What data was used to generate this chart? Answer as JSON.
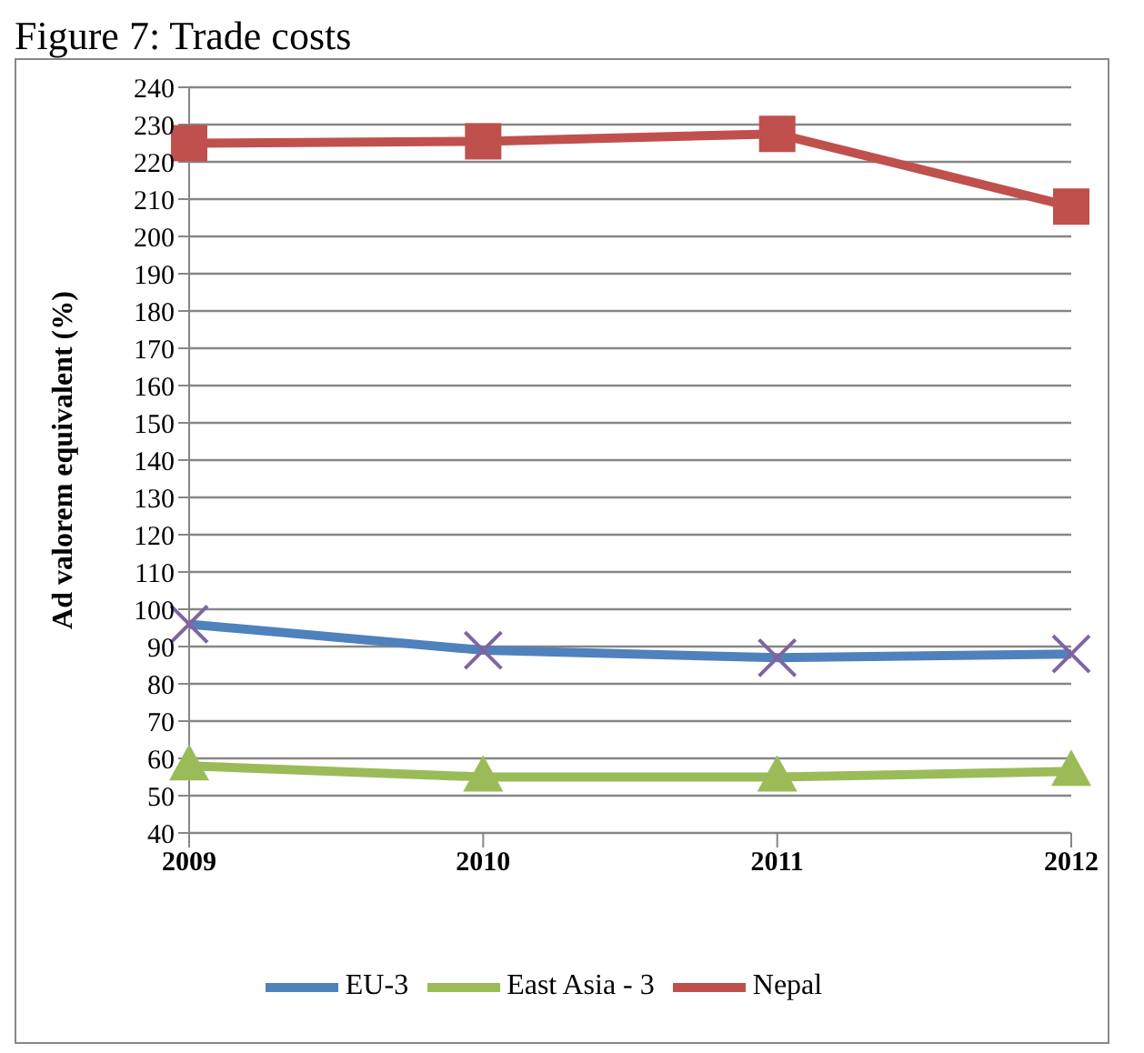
{
  "chart_data": {
    "type": "line",
    "title": "Figure 7: Trade costs",
    "ylabel": "Ad valorem equivalent (%)",
    "categories": [
      "2009",
      "2010",
      "2011",
      "2012"
    ],
    "series": [
      {
        "name": "Nepal",
        "color": "#c0504d",
        "marker": "square",
        "values": [
          225,
          225.5,
          227.5,
          208
        ]
      },
      {
        "name": "East Asia - 3",
        "color": "#9bbb59",
        "marker": "triangle",
        "values": [
          58,
          55,
          55,
          56.5
        ]
      },
      {
        "name": "EU-3",
        "color": "#4f81bd",
        "marker": "cross",
        "values": [
          96,
          89,
          87,
          88
        ]
      }
    ],
    "ylim": [
      40,
      240
    ],
    "yticks": [
      40,
      50,
      60,
      70,
      80,
      90,
      100,
      110,
      120,
      130,
      140,
      150,
      160,
      170,
      180,
      190,
      200,
      210,
      220,
      230,
      240
    ],
    "grid": "y",
    "legend": "bottom"
  }
}
